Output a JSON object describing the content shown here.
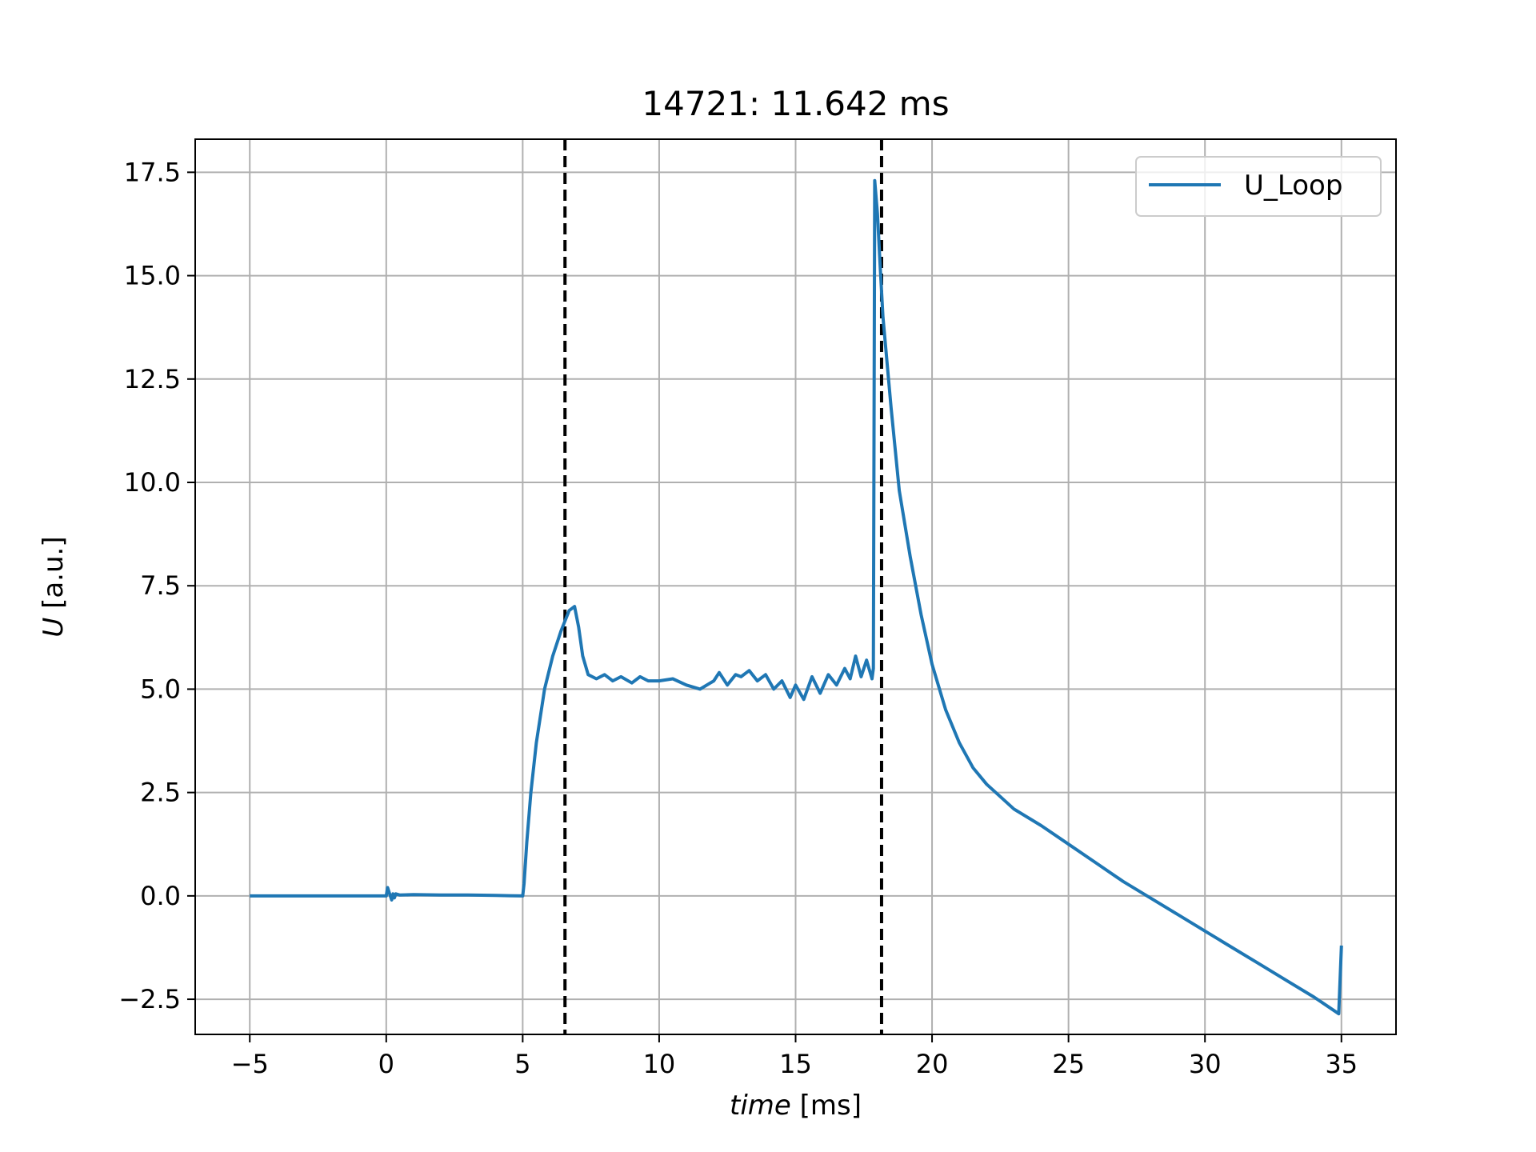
{
  "chart_data": {
    "type": "line",
    "title": "14721: 11.642 ms",
    "xlabel_italic": "time",
    "xlabel_unit": "[ms]",
    "ylabel_italic": "U",
    "ylabel_unit": "[a.u.]",
    "xlim": [
      -7,
      37
    ],
    "ylim": [
      -3.35,
      18.3
    ],
    "x_ticks": [
      -5,
      0,
      5,
      10,
      15,
      20,
      25,
      30,
      35
    ],
    "x_tick_labels": [
      "−5",
      "0",
      "5",
      "10",
      "15",
      "20",
      "25",
      "30",
      "35"
    ],
    "y_ticks": [
      -2.5,
      0,
      2.5,
      5,
      7.5,
      10,
      12.5,
      15,
      17.5
    ],
    "y_tick_labels": [
      "−2.5",
      "0.0",
      "2.5",
      "5.0",
      "7.5",
      "10.0",
      "12.5",
      "15.0",
      "17.5"
    ],
    "grid": true,
    "legend_position": "upper right",
    "vlines": [
      6.55,
      18.15
    ],
    "vline_color": "#000000",
    "series": [
      {
        "name": "U_Loop",
        "color": "#1f77b4",
        "x": [
          -5,
          0,
          0.05,
          0.1,
          0.2,
          0.25,
          0.3,
          0.35,
          0.5,
          1,
          2,
          3,
          4,
          5,
          5.05,
          5.15,
          5.3,
          5.5,
          5.8,
          6.1,
          6.4,
          6.7,
          6.9,
          7.05,
          7.2,
          7.4,
          7.7,
          8.0,
          8.3,
          8.6,
          9.0,
          9.3,
          9.6,
          10.0,
          10.5,
          11.0,
          11.5,
          12.0,
          12.2,
          12.5,
          12.8,
          13.0,
          13.3,
          13.6,
          13.9,
          14.2,
          14.5,
          14.8,
          15.0,
          15.3,
          15.6,
          15.9,
          16.2,
          16.5,
          16.8,
          17.0,
          17.2,
          17.4,
          17.6,
          17.8,
          17.85,
          17.9,
          18.0,
          18.1,
          18.2,
          18.5,
          18.8,
          19.2,
          19.6,
          20.0,
          20.5,
          21.0,
          21.5,
          22.0,
          22.5,
          23.0,
          24.0,
          25.0,
          26.0,
          27.0,
          28.0,
          29.0,
          30.0,
          31.0,
          32.0,
          33.0,
          34.0,
          34.9,
          35.0
        ],
        "values": [
          0,
          0,
          0.2,
          0.1,
          -0.1,
          0.05,
          -0.05,
          0.05,
          0.02,
          0.03,
          0.02,
          0.02,
          0.01,
          0.0,
          0.3,
          1.3,
          2.5,
          3.7,
          5.0,
          5.8,
          6.4,
          6.9,
          7.0,
          6.5,
          5.8,
          5.35,
          5.25,
          5.35,
          5.2,
          5.3,
          5.15,
          5.3,
          5.2,
          5.2,
          5.25,
          5.1,
          5.0,
          5.2,
          5.4,
          5.1,
          5.35,
          5.3,
          5.45,
          5.2,
          5.35,
          5.0,
          5.2,
          4.8,
          5.1,
          4.75,
          5.3,
          4.9,
          5.35,
          5.1,
          5.5,
          5.25,
          5.8,
          5.3,
          5.7,
          5.25,
          5.5,
          17.3,
          16.5,
          15.2,
          14.0,
          11.8,
          9.8,
          8.2,
          6.8,
          5.6,
          4.5,
          3.7,
          3.1,
          2.7,
          2.4,
          2.1,
          1.7,
          1.25,
          0.8,
          0.35,
          -0.05,
          -0.45,
          -0.85,
          -1.25,
          -1.65,
          -2.05,
          -2.45,
          -2.85,
          -1.2
        ]
      }
    ]
  }
}
